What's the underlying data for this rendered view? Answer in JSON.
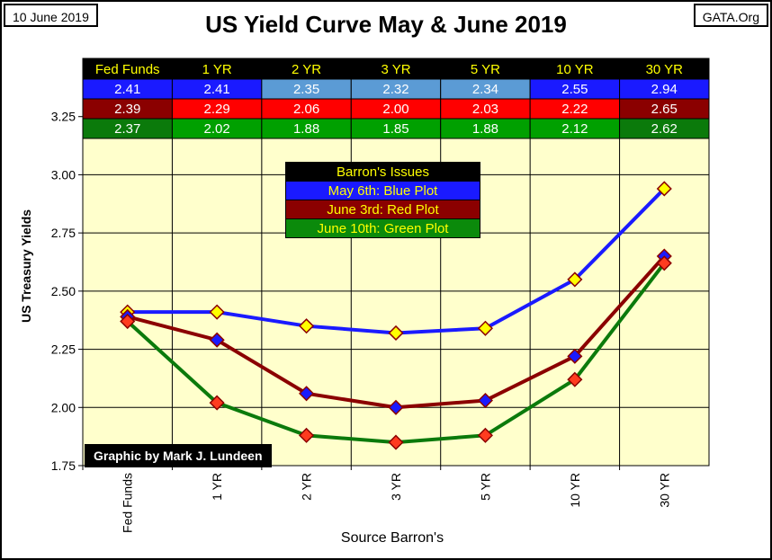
{
  "header": {
    "date": "10 June 2019",
    "source": "GATA.Org",
    "credit": "Graphic by Mark J. Lundeen"
  },
  "colors": {
    "plot_bg": "#ffffcc",
    "blue": "#1a1aff",
    "blue_light": "#5b9bd5",
    "red": "#ff0000",
    "dark_red": "#8b0000",
    "green": "#00a000",
    "dark_green": "#0b7a0b",
    "marker_yellow": "#ffff00",
    "marker_red": "#ff3b1f"
  },
  "legend": {
    "title": "Barron's Issues",
    "blue": "May 6th:  Blue Plot",
    "red": "June 3rd: Red Plot",
    "green": "June 10th: Green Plot"
  },
  "chart_data": {
    "type": "line",
    "title": "US Yield Curve May & June 2019",
    "xlabel": "Source Barron's",
    "ylabel": "US Treasury Yields",
    "categories": [
      "Fed Funds",
      "1 YR",
      "2 YR",
      "3 YR",
      "5 YR",
      "10 YR",
      "30 YR"
    ],
    "ylim": [
      1.75,
      3.5
    ],
    "yticks": [
      "1.75",
      "2.00",
      "2.25",
      "2.50",
      "2.75",
      "3.00",
      "3.25"
    ],
    "grid": true,
    "series": [
      {
        "name": "May 6th",
        "color": "blue",
        "marker": "yellow",
        "values": [
          2.41,
          2.41,
          2.35,
          2.32,
          2.34,
          2.55,
          2.94
        ],
        "labels": [
          "2.41",
          "2.41",
          "2.35",
          "2.32",
          "2.34",
          "2.55",
          "2.94"
        ]
      },
      {
        "name": "June 3rd",
        "color": "dark_red",
        "marker": "blue",
        "values": [
          2.39,
          2.29,
          2.06,
          2.0,
          2.03,
          2.22,
          2.65
        ],
        "labels": [
          "2.39",
          "2.29",
          "2.06",
          "2.00",
          "2.03",
          "2.22",
          "2.65"
        ]
      },
      {
        "name": "June 10th",
        "color": "dark_green",
        "marker": "red",
        "values": [
          2.37,
          2.02,
          1.88,
          1.85,
          1.88,
          2.12,
          2.62
        ],
        "labels": [
          "2.37",
          "2.02",
          "1.88",
          "1.85",
          "1.88",
          "2.12",
          "2.62"
        ]
      }
    ]
  }
}
